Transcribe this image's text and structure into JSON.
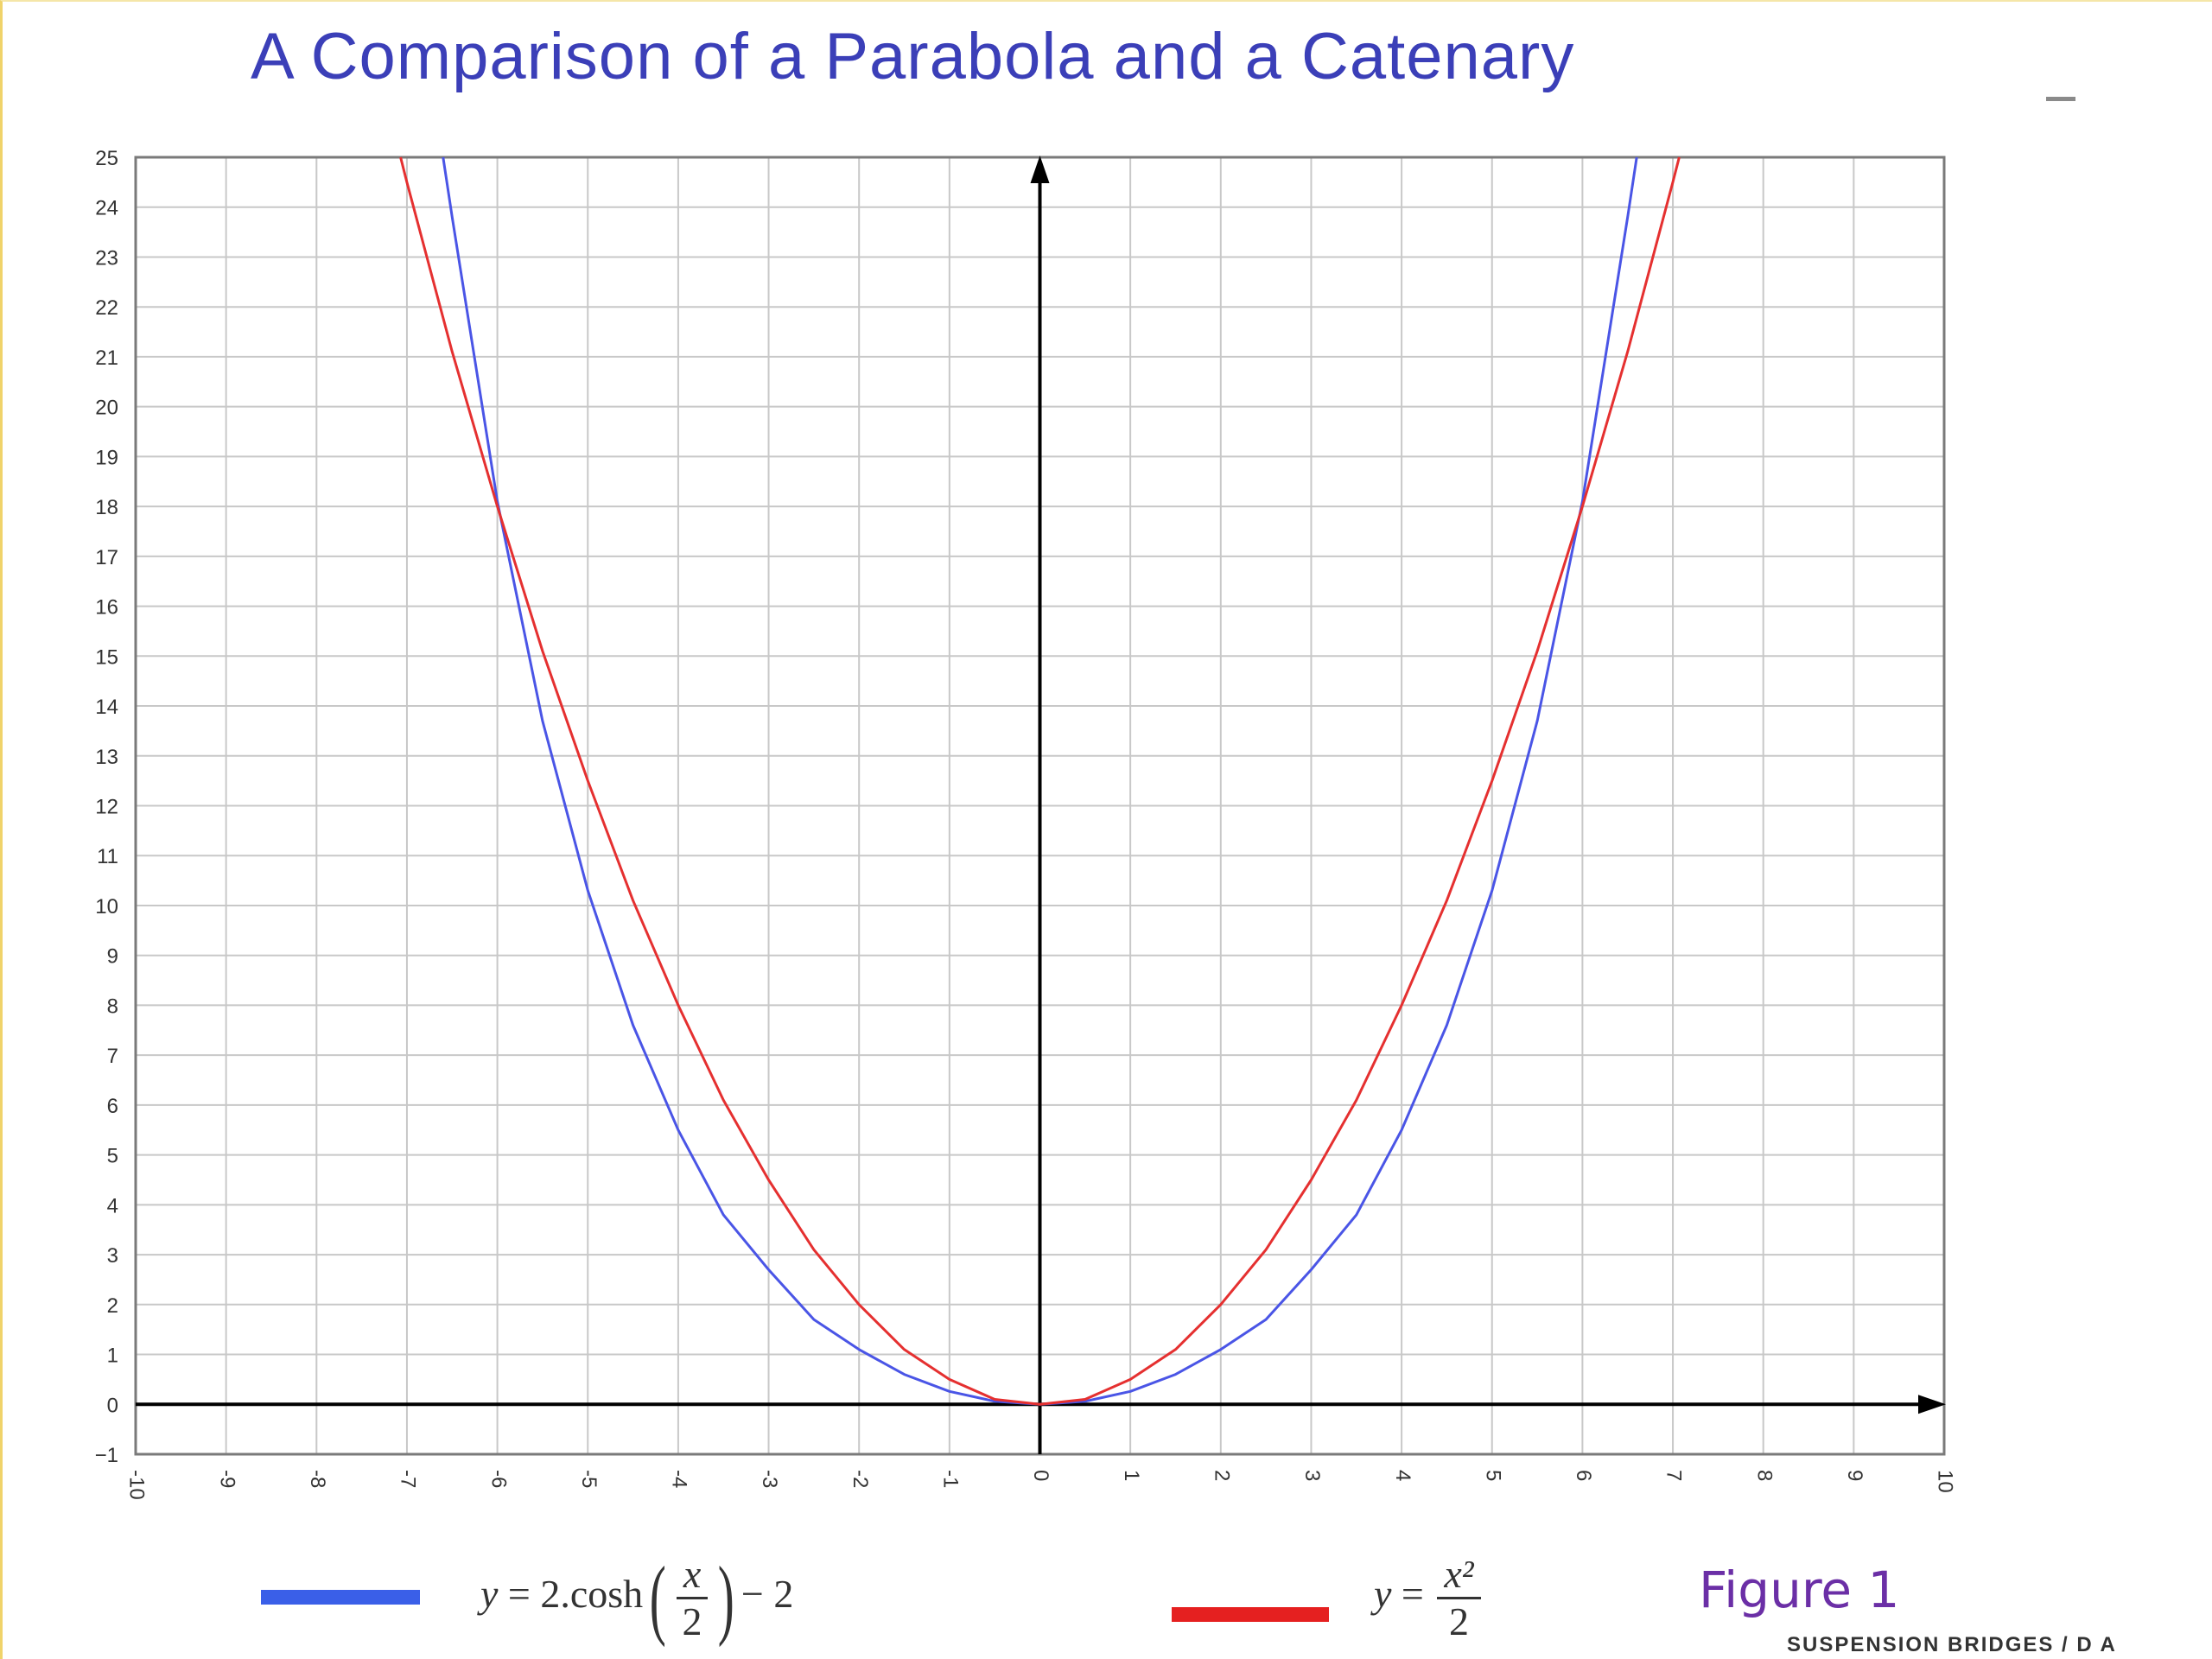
{
  "chart_data": {
    "type": "line",
    "title": "A Comparison of a Parabola and a Catenary",
    "xlabel": "",
    "ylabel": "",
    "xlim": [
      -10,
      10
    ],
    "ylim": [
      -1,
      25
    ],
    "x_ticks": [
      "-10",
      "-9",
      "-8",
      "-7",
      "-6",
      "-5",
      "-4",
      "-3",
      "-2",
      "-1",
      "0",
      "1",
      "2",
      "3",
      "4",
      "5",
      "6",
      "7",
      "8",
      "9",
      "10"
    ],
    "y_ticks": [
      "−1",
      "0",
      "1",
      "2",
      "3",
      "4",
      "5",
      "6",
      "7",
      "8",
      "9",
      "10",
      "11",
      "12",
      "13",
      "14",
      "15",
      "16",
      "17",
      "18",
      "19",
      "20",
      "21",
      "22",
      "23",
      "24",
      "25"
    ],
    "grid": true,
    "series": [
      {
        "legend_label": "y = 2.cosh(x/2) − 2",
        "color": "#4a55e6",
        "legend_color": "#3a5fe8",
        "x": [
          -6.6,
          -6.5,
          -6,
          -5.5,
          -5,
          -4.5,
          -4,
          -3.5,
          -3,
          -2.5,
          -2,
          -1.5,
          -1,
          -0.5,
          0,
          0.5,
          1,
          1.5,
          2,
          2.5,
          3,
          3.5,
          4,
          4.5,
          5,
          5.5,
          6,
          6.5,
          6.6
        ],
        "y": [
          25.1,
          23.8,
          18.1,
          13.7,
          10.3,
          7.6,
          5.5,
          3.8,
          2.7,
          1.7,
          1.1,
          0.6,
          0.26,
          0.06,
          0,
          0.06,
          0.26,
          0.6,
          1.1,
          1.7,
          2.7,
          3.8,
          5.5,
          7.6,
          10.3,
          13.7,
          18.1,
          23.8,
          25.1
        ]
      },
      {
        "legend_label": "y = x²/2",
        "color": "#e53030",
        "legend_color": "#e52020",
        "x": [
          -7.07,
          -7,
          -6.5,
          -6,
          -5.5,
          -5,
          -4.5,
          -4,
          -3.5,
          -3,
          -2.5,
          -2,
          -1.5,
          -1,
          -0.5,
          0,
          0.5,
          1,
          1.5,
          2,
          2.5,
          3,
          3.5,
          4,
          4.5,
          5,
          5.5,
          6,
          6.5,
          7,
          7.07
        ],
        "y": [
          25,
          24.5,
          21.1,
          18,
          15.1,
          12.5,
          10.1,
          8,
          6.1,
          4.5,
          3.1,
          2,
          1.1,
          0.5,
          0.1,
          0,
          0.1,
          0.5,
          1.1,
          2,
          3.1,
          4.5,
          6.1,
          8,
          10.1,
          12.5,
          15.1,
          18,
          21.1,
          24.5,
          25
        ]
      }
    ]
  },
  "legend": {
    "catenary": {
      "lhs": "y",
      "mid": " = 2.cosh",
      "num": "x",
      "den": "2",
      "tail": "− 2"
    },
    "parabola": {
      "lhs": "y",
      "mid": " = ",
      "num": "x²",
      "den": "2"
    }
  },
  "figure_label": "Figure 1",
  "footer_text": "SUSPENSION BRIDGES / D A"
}
